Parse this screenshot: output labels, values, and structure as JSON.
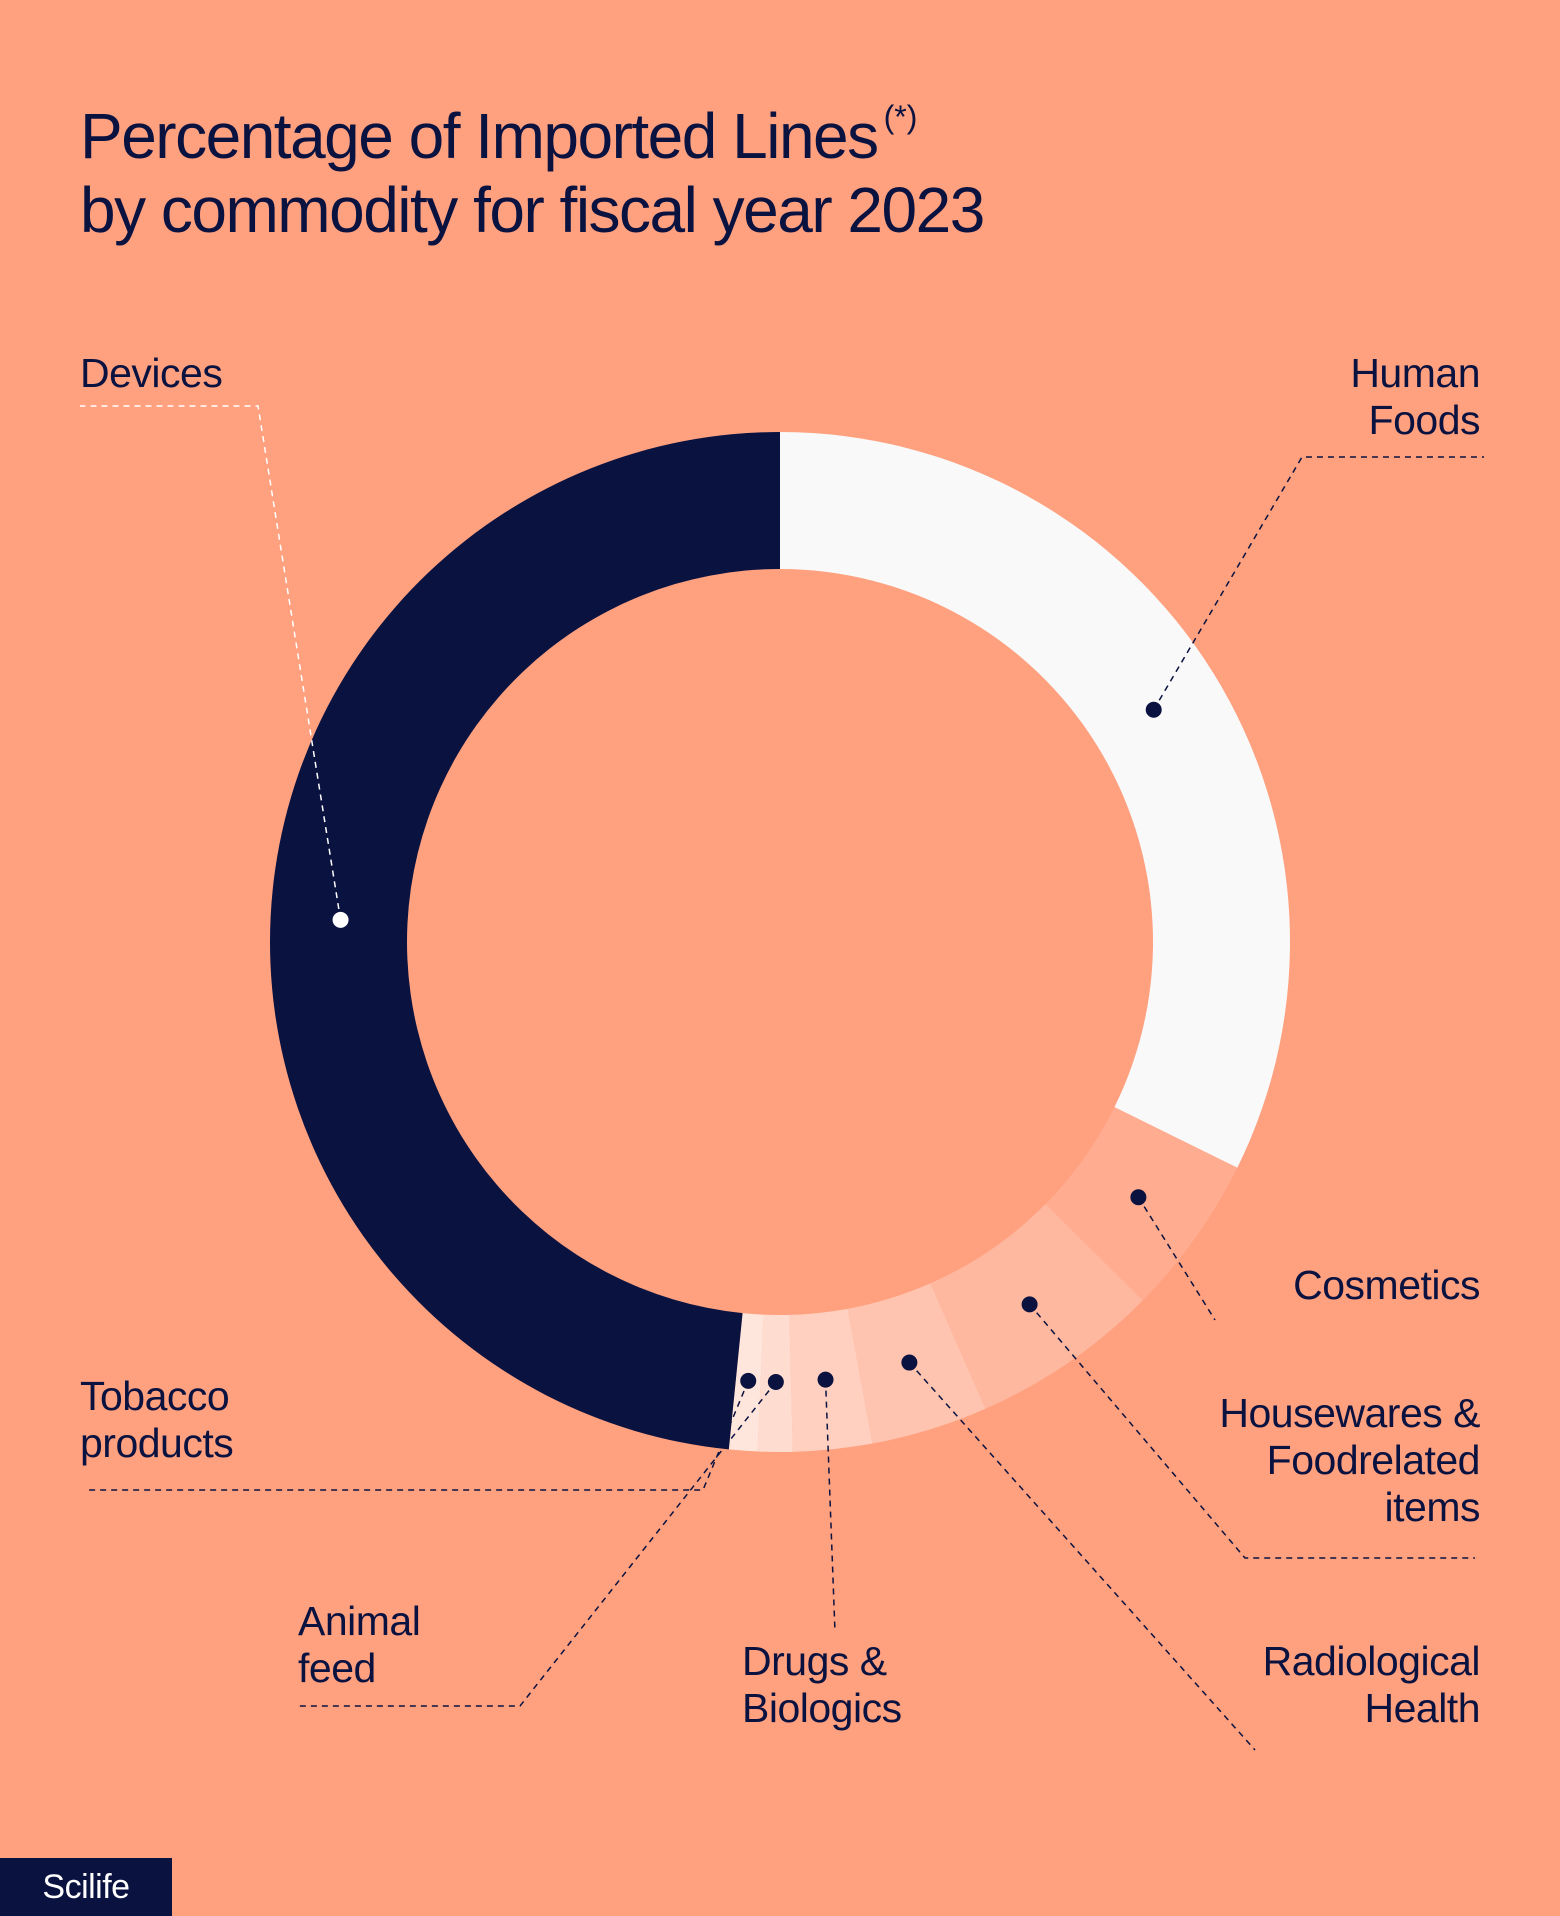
{
  "title": {
    "line1": "Percentage of Imported Lines",
    "note": "(*)",
    "line2": "by commodity for fiscal year 2023"
  },
  "brand": "Scilife",
  "colors": {
    "background": "#FFA07F",
    "navy": "#0A1240",
    "white": "#F9F9F9"
  },
  "chart_data": {
    "type": "pie",
    "subtype": "donut",
    "title": "Percentage of Imported Lines (*) by commodity for fiscal year 2023",
    "units": "percent",
    "slices": [
      {
        "key": "human_foods",
        "label": "Human\nFoods",
        "value": 32.3,
        "color": "#F9F9F9"
      },
      {
        "key": "cosmetics",
        "label": "Cosmetics",
        "value": 5.1,
        "color": "#FFAC90"
      },
      {
        "key": "housewares",
        "label": "Housewares &\nFoodrelated\nitems",
        "value": 6.0,
        "color": "#FFB8A0"
      },
      {
        "key": "radiological",
        "label": "Radiological\nHealth",
        "value": 3.7,
        "color": "#FFC4B0"
      },
      {
        "key": "drugs",
        "label": "Drugs &\nBiologics",
        "value": 2.5,
        "color": "#FFD0C0"
      },
      {
        "key": "animal_feed",
        "label": "Animal\nfeed",
        "value": 1.1,
        "color": "#FFDCD0"
      },
      {
        "key": "tobacco",
        "label": "Tobacco\nproducts",
        "value": 0.9,
        "color": "#FFE6DC"
      },
      {
        "key": "devices",
        "label": "Devices",
        "value": 48.4,
        "color": "#0A1240"
      }
    ]
  }
}
